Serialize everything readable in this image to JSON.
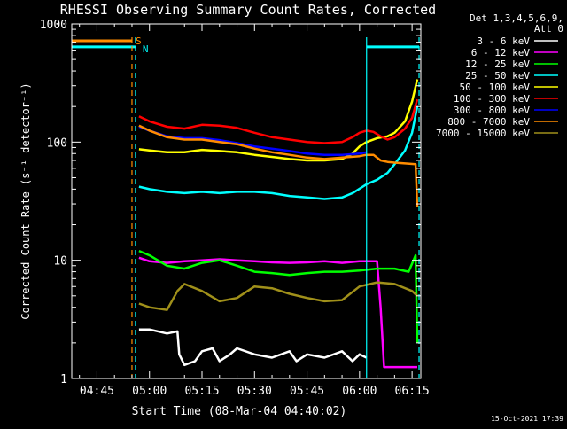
{
  "chart_data": {
    "type": "line",
    "title": "RHESSI Observing Summary Count Rates, Corrected",
    "xlabel": "Start Time (08-Mar-04 04:40:02)",
    "ylabel": "Corrected Count Rate (s⁻¹ detector⁻¹)",
    "yscale": "log",
    "ylim": [
      1,
      1000
    ],
    "xlim_minutes": [
      -2.2,
      97.5
    ],
    "xticks": [
      {
        "m": 5,
        "label": "04:45"
      },
      {
        "m": 20,
        "label": "05:00"
      },
      {
        "m": 35,
        "label": "05:15"
      },
      {
        "m": 50,
        "label": "05:30"
      },
      {
        "m": 65,
        "label": "05:45"
      },
      {
        "m": 80,
        "label": "06:00"
      },
      {
        "m": 95,
        "label": "06:15"
      }
    ],
    "yticks": [
      {
        "v": 1,
        "label": "1"
      },
      {
        "v": 10,
        "label": "10"
      },
      {
        "v": 100,
        "label": "100"
      },
      {
        "v": 1000,
        "label": "1000"
      }
    ],
    "legend_header": [
      "Det 1,3,4,5,6,9,",
      "Att 0"
    ],
    "legend_position": "top-right",
    "timestamp": "15-Oct-2021 17:39",
    "flags": [
      {
        "label": "S",
        "color": "#ff8c00",
        "value": 720,
        "x_from": -2.2,
        "x_to": 15.0
      },
      {
        "label": "N",
        "color": "#00ffff",
        "value": 640,
        "x_from": -2.2,
        "x_to": 16.0
      },
      {
        "label": "",
        "color": "#00ffff",
        "value": 640,
        "x_from": 82.0,
        "x_to": 97.0
      }
    ],
    "vlines": [
      {
        "x": 15.0,
        "color": "#ff8c00",
        "style": "dashed"
      },
      {
        "x": 16.0,
        "color": "#00ffff",
        "style": "dashed"
      },
      {
        "x": 82.0,
        "color": "#00ffff",
        "style": "solid"
      },
      {
        "x": 97.0,
        "color": "#00ffff",
        "style": "dashed"
      }
    ],
    "series": [
      {
        "name": "3 - 6 keV",
        "color": "#ffffff",
        "x": [
          17,
          20,
          25,
          28,
          28.5,
          30,
          33,
          35,
          38,
          40,
          43,
          45,
          50,
          55,
          60,
          62,
          65,
          70,
          75,
          78,
          80,
          82
        ],
        "y": [
          2.6,
          2.6,
          2.4,
          2.5,
          1.6,
          1.3,
          1.4,
          1.7,
          1.8,
          1.4,
          1.6,
          1.8,
          1.6,
          1.5,
          1.7,
          1.4,
          1.6,
          1.5,
          1.7,
          1.4,
          1.6,
          1.5
        ]
      },
      {
        "name": "6 - 12 keV",
        "color": "#ff00ff",
        "x": [
          17,
          20,
          25,
          30,
          35,
          40,
          45,
          50,
          55,
          60,
          65,
          70,
          75,
          80,
          85,
          86,
          87,
          90,
          95,
          96.5
        ],
        "y": [
          10.5,
          9.8,
          9.5,
          9.8,
          10.0,
          10.2,
          10.0,
          9.8,
          9.6,
          9.5,
          9.6,
          9.8,
          9.5,
          9.8,
          9.8,
          4.0,
          1.25,
          1.25,
          1.25,
          1.25
        ]
      },
      {
        "name": "12 - 25 keV",
        "color": "#00ff00",
        "x": [
          17,
          20,
          25,
          30,
          35,
          40,
          45,
          50,
          55,
          60,
          65,
          70,
          75,
          80,
          85,
          90,
          94,
          96,
          96.5
        ],
        "y": [
          12.0,
          11.0,
          9.0,
          8.5,
          9.5,
          10.0,
          9.0,
          8.0,
          7.8,
          7.5,
          7.8,
          8.0,
          8.0,
          8.2,
          8.5,
          8.5,
          8.0,
          11.0,
          2.0
        ]
      },
      {
        "name": "25 - 50 keV",
        "color": "#00ffff",
        "x": [
          17,
          20,
          25,
          30,
          35,
          40,
          45,
          50,
          55,
          60,
          65,
          70,
          75,
          78,
          82,
          85,
          88,
          90,
          93,
          95,
          96.5
        ],
        "y": [
          42,
          40,
          38,
          37,
          38,
          37,
          38,
          38,
          37,
          35,
          34,
          33,
          34,
          37,
          44,
          48,
          55,
          65,
          85,
          120,
          200
        ]
      },
      {
        "name": "50 - 100 keV",
        "color": "#ffff00",
        "x": [
          17,
          20,
          25,
          30,
          35,
          40,
          45,
          50,
          55,
          60,
          65,
          70,
          75,
          78,
          80,
          82,
          85,
          88,
          90,
          93,
          95,
          96.5
        ],
        "y": [
          87,
          85,
          82,
          82,
          86,
          84,
          82,
          78,
          75,
          72,
          70,
          70,
          72,
          80,
          92,
          100,
          108,
          112,
          120,
          150,
          220,
          340
        ]
      },
      {
        "name": "100 - 300 keV",
        "color": "#ff0000",
        "x": [
          17,
          20,
          25,
          30,
          35,
          40,
          45,
          50,
          55,
          60,
          65,
          70,
          75,
          78,
          80,
          82,
          84,
          86,
          88,
          90,
          93,
          95,
          96.5
        ],
        "y": [
          165,
          150,
          135,
          130,
          140,
          138,
          132,
          120,
          110,
          105,
          100,
          98,
          100,
          110,
          120,
          125,
          122,
          112,
          105,
          110,
          130,
          160,
          230
        ]
      },
      {
        "name": "300 - 800 keV",
        "color": "#0000ff",
        "x": [
          17,
          20,
          25,
          30,
          35,
          40,
          45,
          50,
          55,
          60,
          65,
          70,
          75,
          80,
          82
        ],
        "y": [
          135,
          125,
          112,
          108,
          108,
          104,
          98,
          92,
          88,
          84,
          80,
          78,
          78,
          80,
          82
        ]
      },
      {
        "name": "800 - 7000 keV",
        "color": "#ff8c00",
        "x": [
          17,
          20,
          25,
          30,
          35,
          40,
          45,
          50,
          55,
          60,
          65,
          70,
          75,
          80,
          82,
          84,
          86,
          88,
          90,
          93,
          96,
          96.5
        ],
        "y": [
          138,
          125,
          110,
          105,
          105,
          100,
          96,
          88,
          82,
          78,
          74,
          72,
          74,
          76,
          78,
          78,
          70,
          68,
          67,
          66,
          65,
          28
        ]
      },
      {
        "name": "7000 - 15000 keV",
        "color": "#a0901a",
        "x": [
          17,
          20,
          25,
          28,
          30,
          35,
          40,
          45,
          50,
          55,
          60,
          65,
          70,
          75,
          80,
          85,
          90,
          95,
          96.5
        ],
        "y": [
          4.3,
          4.0,
          3.8,
          5.5,
          6.3,
          5.5,
          4.5,
          4.8,
          6.0,
          5.8,
          5.2,
          4.8,
          4.5,
          4.6,
          6.0,
          6.5,
          6.3,
          5.5,
          5.0
        ]
      }
    ]
  }
}
